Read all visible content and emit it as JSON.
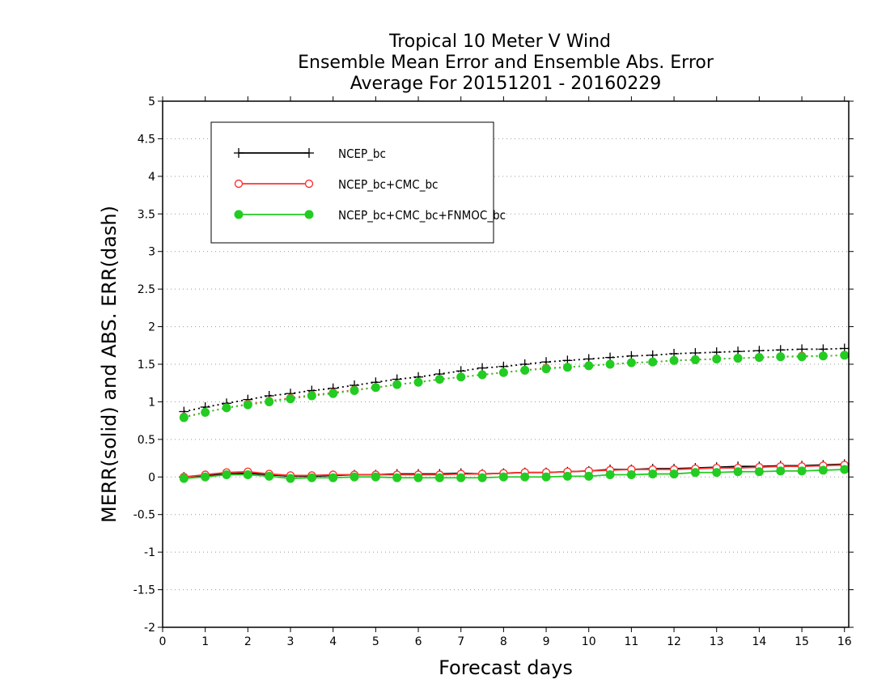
{
  "chart_data": {
    "type": "line",
    "title": [
      "Tropical 10 Meter V Wind",
      "Ensemble Mean Error and Ensemble Abs. Error",
      "Average For 20151201 - 20160229"
    ],
    "xlabel": "Forecast days",
    "ylabel": "MERR(solid) and ABS. ERR(dash)",
    "xlim": [
      0,
      16.1
    ],
    "ylim": [
      -2,
      5
    ],
    "x_ticks": [
      0,
      1,
      2,
      3,
      4,
      5,
      6,
      7,
      8,
      9,
      10,
      11,
      12,
      13,
      14,
      15,
      16
    ],
    "y_ticks": [
      -2,
      -1.5,
      -1,
      -0.5,
      0,
      0.5,
      1,
      1.5,
      2,
      2.5,
      3,
      3.5,
      4,
      4.5,
      5
    ],
    "y_tick_labels": [
      "-2",
      "-1.5",
      "-1",
      "-0.5",
      "0",
      "0.5",
      "1",
      "1.5",
      "2",
      "2.5",
      "3",
      "3.5",
      "4",
      "4.5",
      "5"
    ],
    "grid": "horizontal dotted",
    "legend_position": "top-left",
    "x": [
      0.5,
      1,
      1.5,
      2,
      2.5,
      3,
      3.5,
      4,
      4.5,
      5,
      5.5,
      6,
      6.5,
      7,
      7.5,
      8,
      8.5,
      9,
      9.5,
      10,
      10.5,
      11,
      11.5,
      12,
      12.5,
      13,
      13.5,
      14,
      14.5,
      15,
      15.5,
      16
    ],
    "series": [
      {
        "name": "NCEP_bc",
        "color": "#000000",
        "marker": "plus",
        "merr": [
          0.0,
          0.02,
          0.04,
          0.05,
          0.03,
          0.01,
          0.01,
          0.02,
          0.03,
          0.03,
          0.04,
          0.04,
          0.04,
          0.05,
          0.04,
          0.05,
          0.06,
          0.06,
          0.07,
          0.08,
          0.1,
          0.1,
          0.11,
          0.11,
          0.12,
          0.13,
          0.14,
          0.14,
          0.15,
          0.15,
          0.16,
          0.17
        ],
        "abs_err": [
          0.87,
          0.93,
          0.98,
          1.03,
          1.08,
          1.11,
          1.15,
          1.18,
          1.22,
          1.26,
          1.3,
          1.33,
          1.37,
          1.41,
          1.45,
          1.47,
          1.5,
          1.53,
          1.55,
          1.57,
          1.59,
          1.61,
          1.62,
          1.64,
          1.65,
          1.66,
          1.67,
          1.68,
          1.69,
          1.7,
          1.7,
          1.71
        ]
      },
      {
        "name": "NCEP_bc+CMC_bc",
        "color": "#ff3333",
        "marker": "open-circle",
        "merr": [
          0.0,
          0.03,
          0.06,
          0.07,
          0.04,
          0.02,
          0.02,
          0.03,
          0.03,
          0.03,
          0.03,
          0.03,
          0.03,
          0.04,
          0.04,
          0.05,
          0.06,
          0.06,
          0.07,
          0.08,
          0.09,
          0.1,
          0.1,
          0.1,
          0.11,
          0.12,
          0.12,
          0.13,
          0.14,
          0.14,
          0.15,
          0.16
        ],
        "abs_err": [
          0.8,
          0.86,
          0.92,
          0.97,
          1.01,
          1.05,
          1.09,
          1.12,
          1.16,
          1.19,
          1.23,
          1.26,
          1.3,
          1.33,
          1.36,
          1.39,
          1.42,
          1.45,
          1.46,
          1.48,
          1.5,
          1.52,
          1.53,
          1.55,
          1.56,
          1.57,
          1.58,
          1.59,
          1.6,
          1.61,
          1.61,
          1.62
        ]
      },
      {
        "name": "NCEP_bc+CMC_bc+FNMOC_bc",
        "color": "#22cc22",
        "marker": "filled-circle",
        "merr": [
          -0.02,
          0.0,
          0.03,
          0.03,
          0.01,
          -0.02,
          -0.01,
          -0.01,
          0.0,
          0.0,
          -0.01,
          -0.01,
          -0.01,
          -0.01,
          -0.01,
          0.0,
          0.0,
          0.0,
          0.01,
          0.01,
          0.03,
          0.03,
          0.04,
          0.04,
          0.06,
          0.06,
          0.07,
          0.07,
          0.08,
          0.08,
          0.09,
          0.1
        ],
        "abs_err": [
          0.79,
          0.86,
          0.92,
          0.96,
          1.0,
          1.04,
          1.08,
          1.11,
          1.15,
          1.19,
          1.23,
          1.26,
          1.3,
          1.33,
          1.36,
          1.39,
          1.42,
          1.44,
          1.46,
          1.48,
          1.5,
          1.52,
          1.53,
          1.55,
          1.56,
          1.57,
          1.58,
          1.59,
          1.6,
          1.6,
          1.61,
          1.62
        ]
      }
    ]
  }
}
